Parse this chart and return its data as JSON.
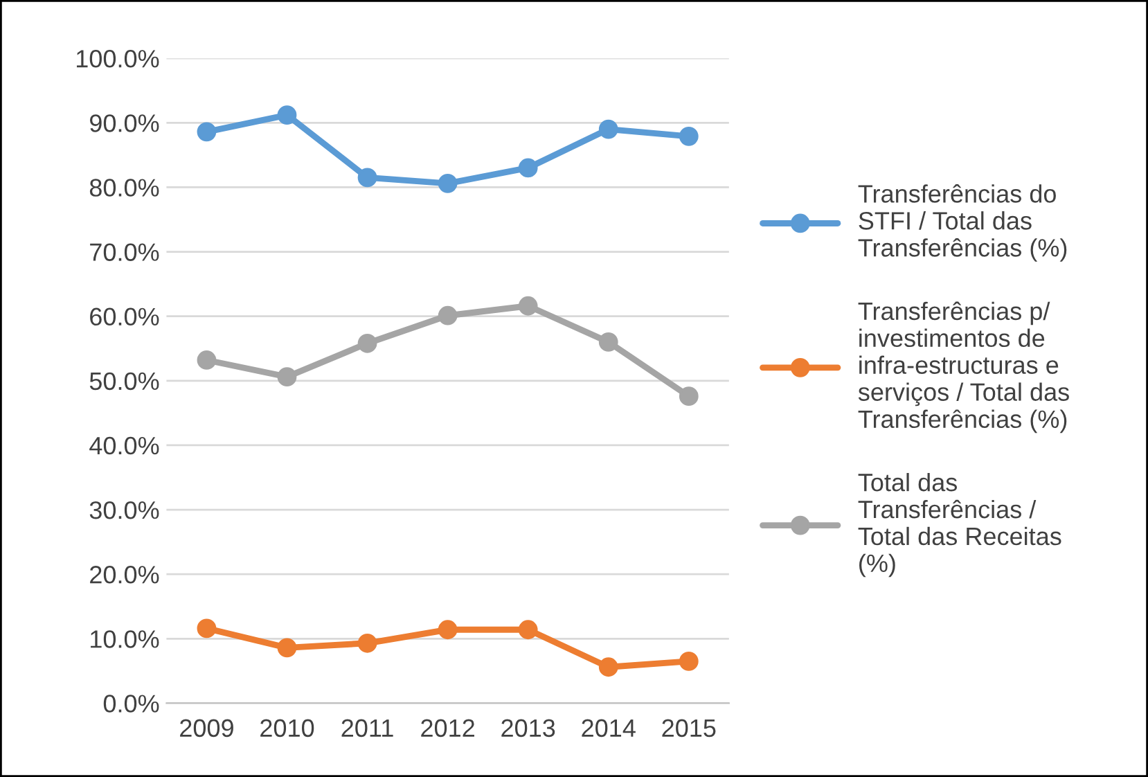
{
  "chart_data": {
    "type": "line",
    "categories": [
      "2009",
      "2010",
      "2011",
      "2012",
      "2013",
      "2014",
      "2015"
    ],
    "series": [
      {
        "name": "Transferências do\nSTFI / Total das\nTransferências (%)",
        "color": "#5b9bd5",
        "values": [
          88.6,
          91.2,
          81.5,
          80.6,
          83.0,
          89.0,
          87.9
        ]
      },
      {
        "name": "Transferências p/\ninvestimentos de\ninfra-estructuras e\nserviços / Total das\nTransferências (%)",
        "color": "#ed7d31",
        "values": [
          11.6,
          8.6,
          9.3,
          11.4,
          11.4,
          5.6,
          6.5
        ]
      },
      {
        "name": "Total das\nTransferências /\nTotal das Receitas\n(%)",
        "color": "#a5a5a5",
        "values": [
          53.2,
          50.6,
          55.8,
          60.1,
          61.6,
          56.0,
          47.6
        ]
      }
    ],
    "ylim": [
      0,
      100
    ],
    "yticks": [
      {
        "value": 0,
        "label": "0.0%"
      },
      {
        "value": 10,
        "label": "10.0%"
      },
      {
        "value": 20,
        "label": "20.0%"
      },
      {
        "value": 30,
        "label": "30.0%"
      },
      {
        "value": 40,
        "label": "40.0%"
      },
      {
        "value": 50,
        "label": "50.0%"
      },
      {
        "value": 60,
        "label": "60.0%"
      },
      {
        "value": 70,
        "label": "70.0%"
      },
      {
        "value": 80,
        "label": "80.0%"
      },
      {
        "value": 90,
        "label": "90.0%"
      },
      {
        "value": 100,
        "label": "100.0%"
      }
    ],
    "grid": "y",
    "legend": "right",
    "marker": "circle",
    "line_style": "solid"
  }
}
